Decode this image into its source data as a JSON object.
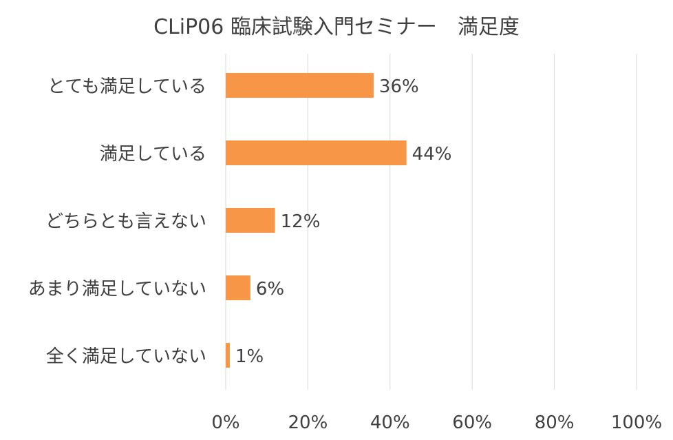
{
  "chart_data": {
    "type": "bar",
    "orientation": "horizontal",
    "title": "CLiP06 臨床試験入門セミナー　満足度",
    "categories": [
      "とても満足している",
      "満足している",
      "どちらとも言えない",
      "あまり満足していない",
      "全く満足していない"
    ],
    "values": [
      36,
      44,
      12,
      6,
      1
    ],
    "value_labels": [
      "36%",
      "44%",
      "12%",
      "6%",
      "1%"
    ],
    "x_ticks": [
      0,
      20,
      40,
      60,
      80,
      100
    ],
    "x_tick_labels": [
      "0%",
      "20%",
      "40%",
      "60%",
      "80%",
      "100%"
    ],
    "xlim": [
      0,
      100
    ],
    "grid": true,
    "legend": "none",
    "bar_color": "#F79646",
    "grid_color": "#D9D9D9",
    "text_color": "#404040"
  }
}
